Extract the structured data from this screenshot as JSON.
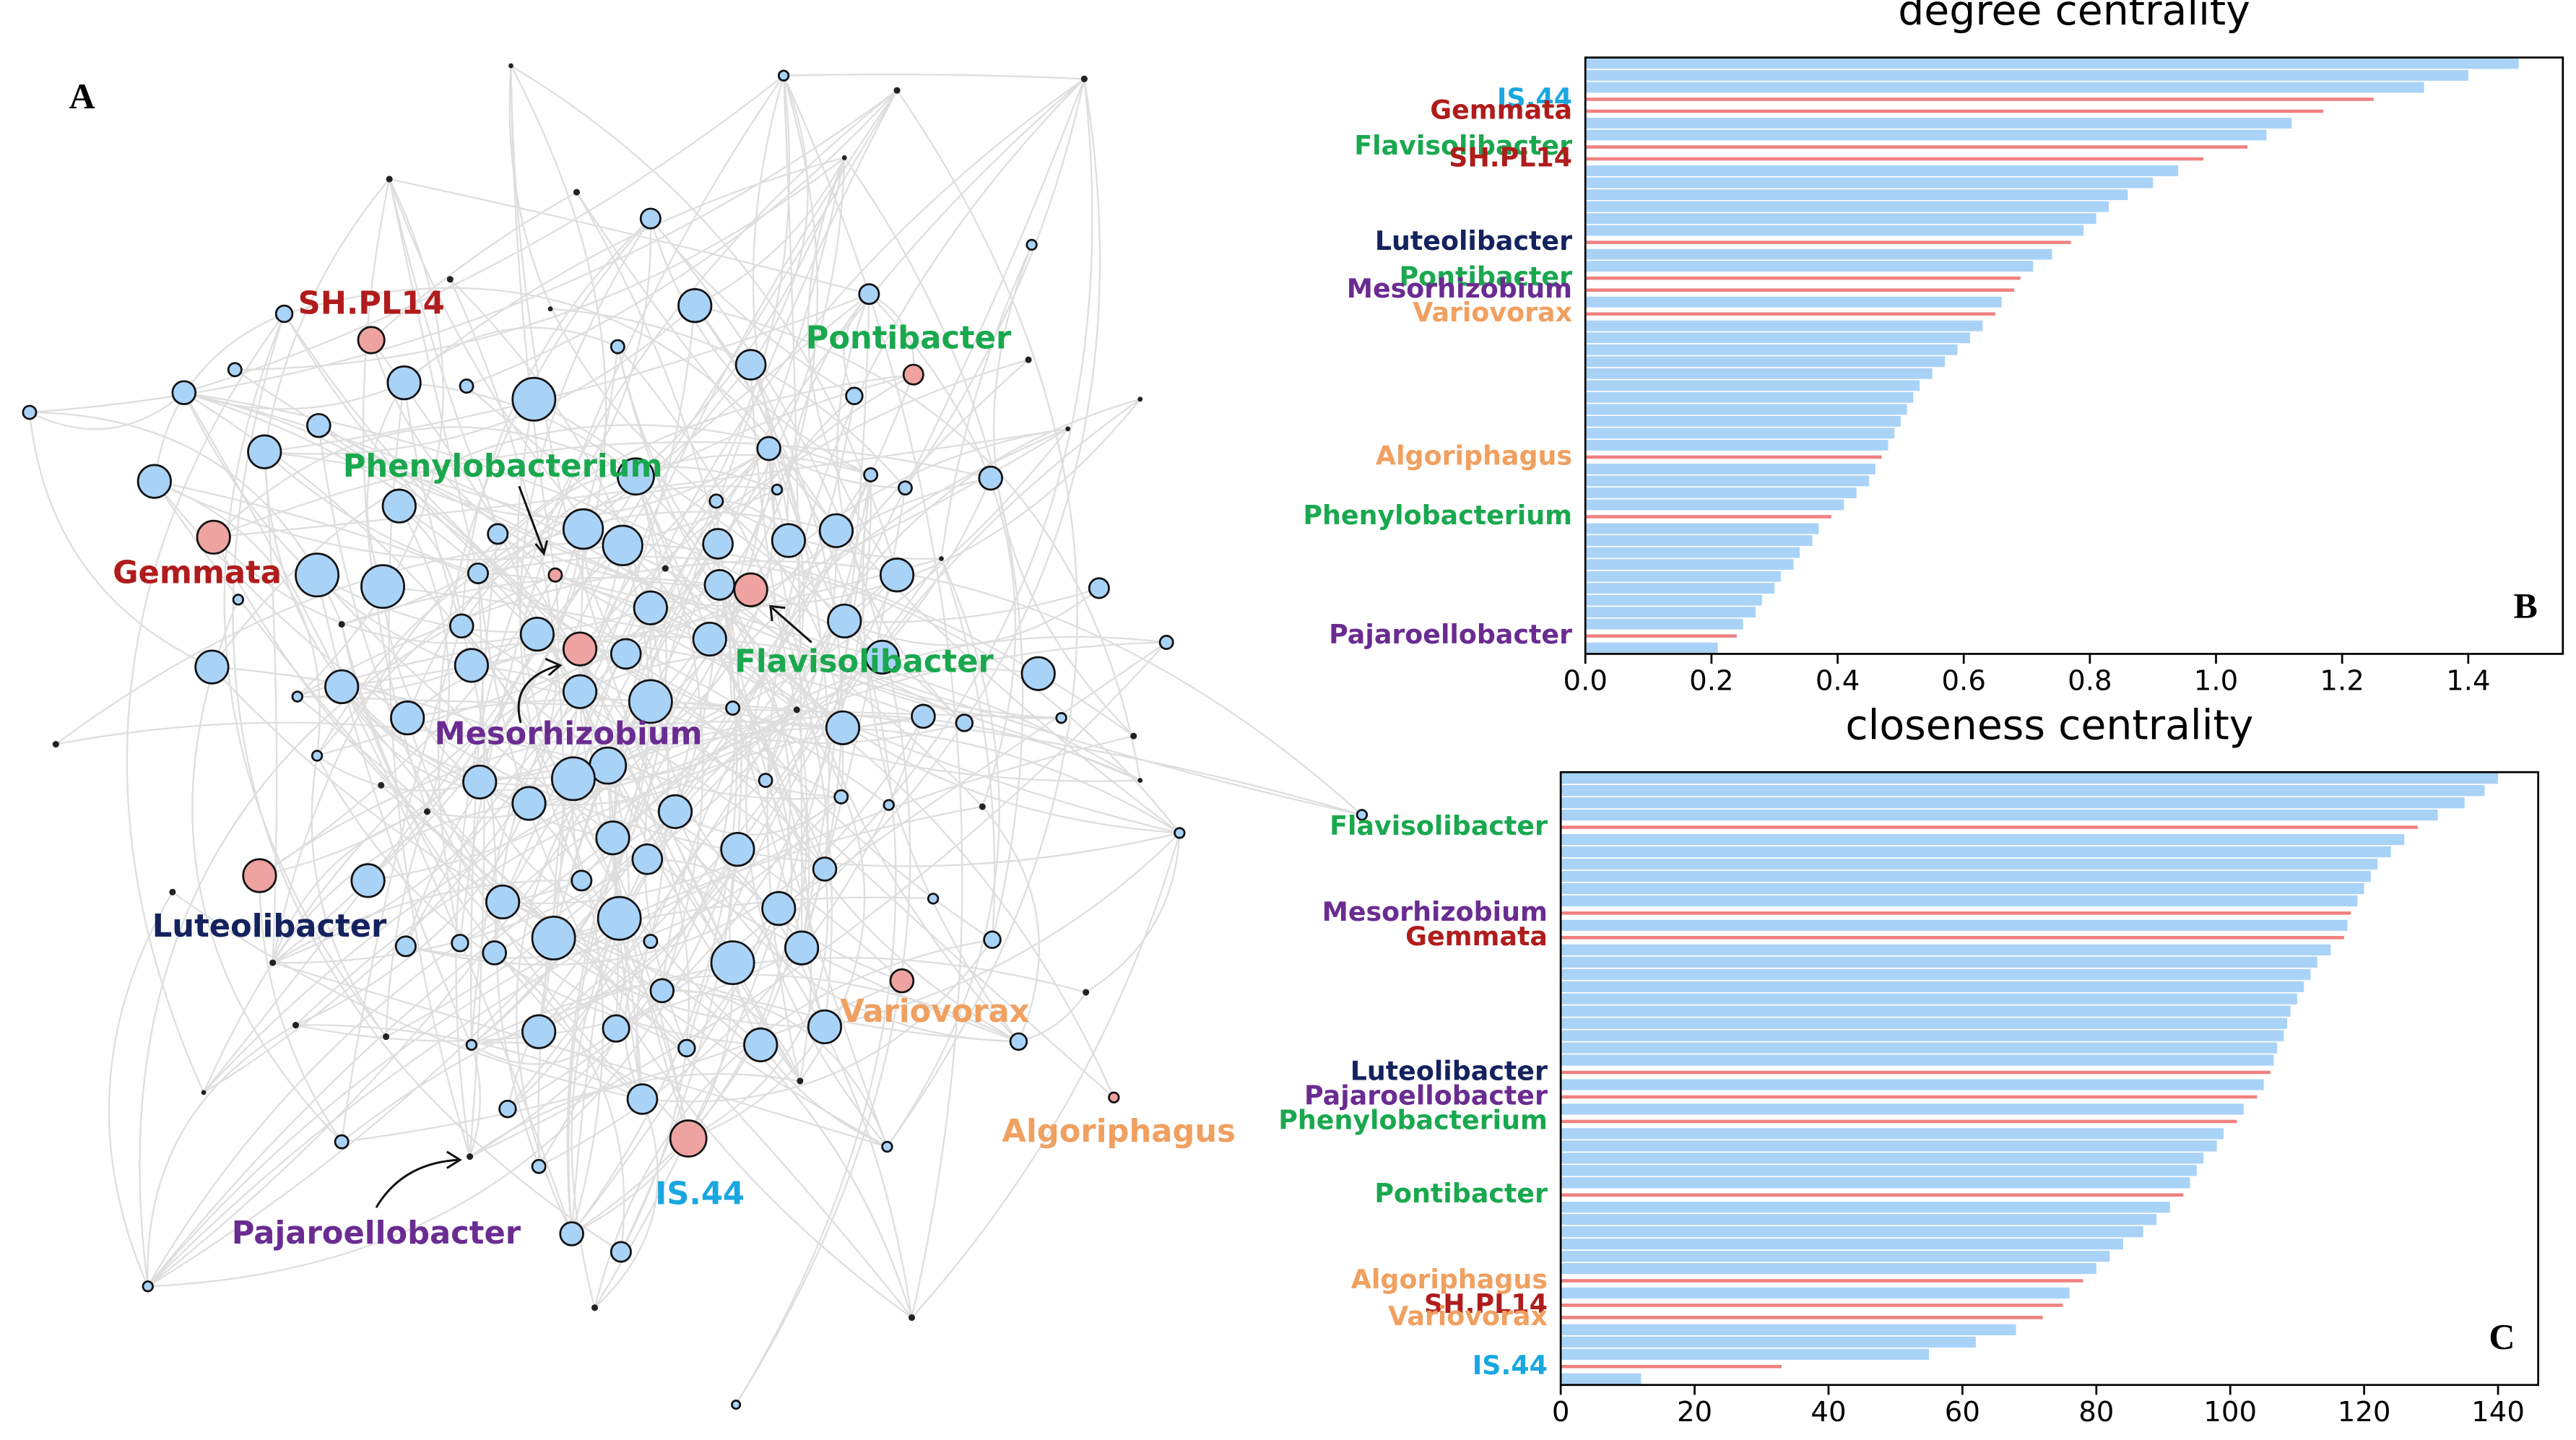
{
  "network": {
    "panel": "A",
    "labels": [
      {
        "text": "SH.PL14",
        "color": "#b01c1c"
      },
      {
        "text": "Pontibacter",
        "color": "#1aa84f"
      },
      {
        "text": "Phenylobacterium",
        "color": "#1aa84f"
      },
      {
        "text": "Gemmata",
        "color": "#b01c1c"
      },
      {
        "text": "Flavisolibacter",
        "color": "#1aa84f"
      },
      {
        "text": "Mesorhizobium",
        "color": "#6a2c91"
      },
      {
        "text": "Luteolibacter",
        "color": "#14235e"
      },
      {
        "text": "Variovorax",
        "color": "#f0a060"
      },
      {
        "text": "Algoriphagus",
        "color": "#f0a060"
      },
      {
        "text": "Pajaroellobacter",
        "color": "#6a2c91"
      },
      {
        "text": "IS.44",
        "color": "#1aa7e0"
      }
    ]
  },
  "chart_data": [
    {
      "type": "barh",
      "panel": "B",
      "title": "degree centrality",
      "color": "#a9d2f7",
      "highlight_color": "#f08080",
      "categories": [
        null,
        null,
        null,
        "IS.44",
        "Gemmata",
        null,
        null,
        "Flavisolibacter",
        "SH.PL14",
        null,
        null,
        null,
        null,
        null,
        null,
        "Luteolibacter",
        null,
        null,
        "Pontibacter",
        "Mesorhizobium",
        null,
        "Variovorax",
        null,
        null,
        null,
        null,
        null,
        null,
        null,
        null,
        null,
        null,
        null,
        "Algoriphagus",
        null,
        null,
        null,
        null,
        "Phenylobacterium",
        null,
        null,
        null,
        null,
        null,
        null,
        null,
        null,
        null,
        "Pajaroellobacter",
        null
      ],
      "label_colors": [
        null,
        null,
        null,
        "#1aa7e0",
        "#b01c1c",
        null,
        null,
        "#1aa84f",
        "#b01c1c",
        null,
        null,
        null,
        null,
        null,
        null,
        "#14235e",
        null,
        null,
        "#1aa84f",
        "#6a2c91",
        null,
        "#f0a060",
        null,
        null,
        null,
        null,
        null,
        null,
        null,
        null,
        null,
        null,
        null,
        "#f0a060",
        null,
        null,
        null,
        null,
        "#1aa84f",
        null,
        null,
        null,
        null,
        null,
        null,
        null,
        null,
        null,
        "#6a2c91",
        null
      ],
      "values": [
        1.48,
        1.4,
        1.33,
        1.25,
        1.17,
        1.12,
        1.08,
        1.05,
        0.98,
        0.94,
        0.9,
        0.86,
        0.83,
        0.81,
        0.79,
        0.77,
        0.74,
        0.71,
        0.69,
        0.68,
        0.66,
        0.65,
        0.63,
        0.61,
        0.59,
        0.57,
        0.55,
        0.53,
        0.52,
        0.51,
        0.5,
        0.49,
        0.48,
        0.47,
        0.46,
        0.45,
        0.43,
        0.41,
        0.39,
        0.37,
        0.36,
        0.34,
        0.33,
        0.31,
        0.3,
        0.28,
        0.27,
        0.25,
        0.24,
        0.21
      ],
      "xlim": [
        0,
        1.55
      ],
      "xticks": [
        {
          "value": 0,
          "label": "0.0"
        },
        0.2,
        0.4,
        0.6,
        0.8,
        {
          "value": 1,
          "label": "1.0"
        },
        1.2,
        1.4
      ]
    },
    {
      "type": "barh",
      "panel": "C",
      "title": "closeness centrality",
      "color": "#a9d2f7",
      "highlight_color": "#f08080",
      "categories": [
        null,
        null,
        null,
        null,
        "Flavisolibacter",
        null,
        null,
        null,
        null,
        null,
        null,
        "Mesorhizobium",
        null,
        "Gemmata",
        null,
        null,
        null,
        null,
        null,
        null,
        null,
        null,
        null,
        null,
        "Luteolibacter",
        null,
        "Pajaroellobacter",
        null,
        "Phenylobacterium",
        null,
        null,
        null,
        null,
        null,
        "Pontibacter",
        null,
        null,
        null,
        null,
        null,
        null,
        "Algoriphagus",
        null,
        "SH.PL14",
        "Variovorax",
        null,
        null,
        null,
        "IS.44",
        null
      ],
      "label_colors": [
        null,
        null,
        null,
        null,
        "#1aa84f",
        null,
        null,
        null,
        null,
        null,
        null,
        "#6a2c91",
        null,
        "#b01c1c",
        null,
        null,
        null,
        null,
        null,
        null,
        null,
        null,
        null,
        null,
        "#14235e",
        null,
        "#6a2c91",
        null,
        "#1aa84f",
        null,
        null,
        null,
        null,
        null,
        "#1aa84f",
        null,
        null,
        null,
        null,
        null,
        null,
        "#f0a060",
        null,
        "#b01c1c",
        "#f0a060",
        null,
        null,
        null,
        "#1aa7e0",
        null
      ],
      "values": [
        140,
        138,
        135,
        131,
        128,
        126,
        124,
        122,
        121,
        120,
        119,
        118,
        117.5,
        117,
        115,
        113,
        112,
        111,
        110,
        109,
        108.5,
        108,
        107,
        106.5,
        106,
        105,
        104,
        102,
        101,
        99,
        98,
        96,
        95,
        94,
        93,
        91,
        89,
        87,
        84,
        82,
        80,
        78,
        76,
        75,
        72,
        68,
        62,
        55,
        33,
        12
      ],
      "xlim": [
        0,
        146
      ],
      "xticks": [
        0,
        20,
        40,
        60,
        80,
        100,
        120,
        140
      ]
    }
  ]
}
